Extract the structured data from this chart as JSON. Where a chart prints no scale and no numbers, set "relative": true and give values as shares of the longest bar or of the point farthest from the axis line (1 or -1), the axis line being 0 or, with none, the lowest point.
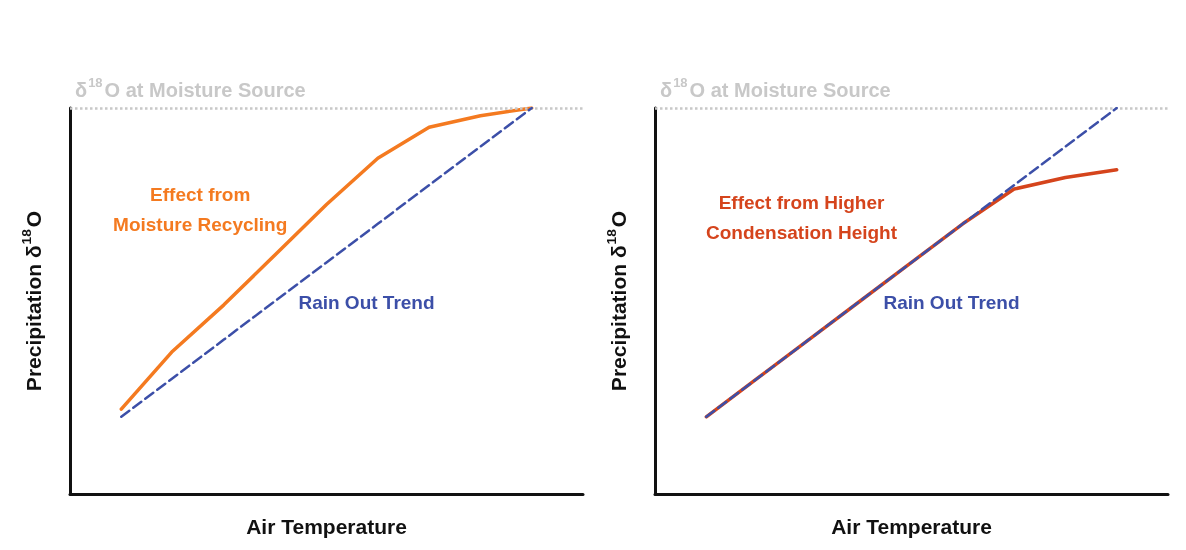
{
  "chart_data": [
    {
      "type": "line",
      "relative": true,
      "xlabel": "Air Temperature",
      "ylabel": "Precipitation δ$^{18}$O",
      "categories": [
        null,
        null,
        null,
        null,
        null,
        null,
        null,
        null,
        null,
        null,
        null
      ],
      "legend": false,
      "grid": false,
      "marker": "none",
      "series": [
        {
          "name": "Effect from Moisture Recycling",
          "color": "#f47a20",
          "line_style": "solid",
          "values": [
            null,
            0.22,
            0.37,
            0.49,
            0.62,
            0.75,
            0.87,
            0.95,
            0.98,
            1.0,
            null
          ]
        },
        {
          "name": "Rain Out Trend",
          "color": "#3c4fa8",
          "line_style": "dashed",
          "values": [
            null,
            0.2,
            0.3,
            0.4,
            0.5,
            0.6,
            0.7,
            0.8,
            0.9,
            1.0,
            null
          ]
        }
      ],
      "ref_lines": [
        {
          "axis": "y",
          "value": 1.0,
          "label": "δ$^{18}$O at Moisture Source",
          "color": "#c8c8c8",
          "line_style": "dotted"
        }
      ]
    },
    {
      "type": "line",
      "relative": true,
      "xlabel": "Air Temperature",
      "ylabel": "Precipitation δ$^{18}$O",
      "categories": [
        null,
        null,
        null,
        null,
        null,
        null,
        null,
        null,
        null,
        null,
        null
      ],
      "legend": false,
      "grid": false,
      "marker": "none",
      "series": [
        {
          "name": "Rain Out Trend",
          "color": "#3c4fa8",
          "line_style": "dashed",
          "values": [
            null,
            0.2,
            0.3,
            0.4,
            0.5,
            0.6,
            0.7,
            0.8,
            0.9,
            1.0,
            null
          ]
        },
        {
          "name": "Effect from Higher Condensation Height",
          "color": "#d5441c",
          "line_style": "solid",
          "values": [
            null,
            0.2,
            0.3,
            0.4,
            0.5,
            0.6,
            0.7,
            0.79,
            0.82,
            0.84,
            null
          ]
        }
      ],
      "ref_lines": [
        {
          "axis": "y",
          "value": 1.0,
          "label": "δ$^{18}$O at Moisture Source",
          "color": "#c8c8c8",
          "line_style": "dotted"
        }
      ]
    }
  ]
}
